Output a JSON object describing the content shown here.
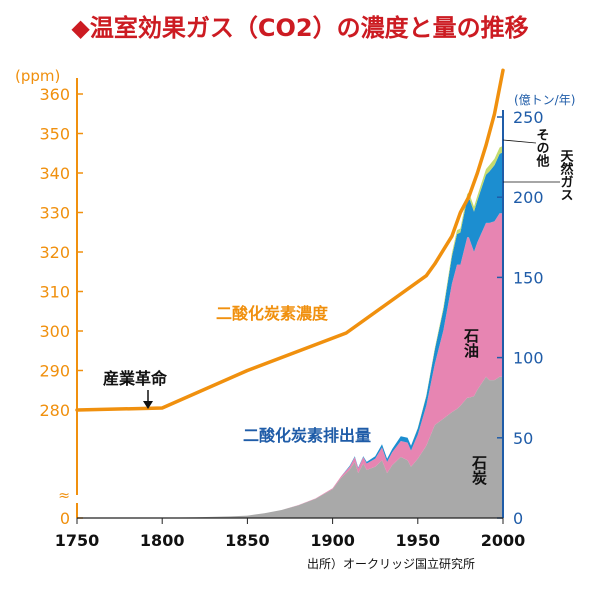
{
  "title": {
    "marker": "◆",
    "text": "温室効果ガス（CO2）の濃度と量の推移"
  },
  "source": "出所）オークリッジ国立研究所",
  "colors": {
    "title": "#cc1b22",
    "concentration": "#f0900e",
    "emissions_axis": "#1f5ca8",
    "coal": "#a9a9a9",
    "oil": "#e785b2",
    "gas": "#1c8ed0",
    "other": "#c4db6e"
  },
  "chart_data": {
    "type": "area",
    "xlim": [
      1750,
      2000
    ],
    "x_ticks": [
      "1750",
      "1800",
      "1850",
      "1900",
      "1950",
      "2000"
    ],
    "left_axis": {
      "unit": "(ppm)",
      "ticks": [
        "0",
        "280",
        "290",
        "300",
        "310",
        "320",
        "330",
        "340",
        "350",
        "360"
      ],
      "break": "≈"
    },
    "right_axis": {
      "unit": "(億トン/年)",
      "ticks": [
        "0",
        "50",
        "100",
        "150",
        "200",
        "250"
      ],
      "range": [
        0,
        250
      ]
    },
    "concentration_series": {
      "name": "二酸化炭素濃度",
      "unit": "ppm",
      "x": [
        1750,
        1800,
        1850,
        1908,
        1955,
        1960,
        1970,
        1975,
        1980,
        1985,
        1990,
        1995,
        2000
      ],
      "y": [
        280,
        280.5,
        290,
        299.5,
        314,
        317,
        324,
        330,
        334,
        340,
        347,
        355,
        366
      ]
    },
    "emission_series": {
      "name": "二酸化炭素排出量",
      "unit": "億トン/年",
      "x": [
        1750,
        1780,
        1800,
        1820,
        1840,
        1850,
        1860,
        1870,
        1880,
        1890,
        1900,
        1905,
        1910,
        1913,
        1915,
        1918,
        1920,
        1925,
        1929,
        1932,
        1935,
        1940,
        1944,
        1946,
        1950,
        1955,
        1960,
        1965,
        1970,
        1973,
        1975,
        1979,
        1980,
        1983,
        1985,
        1990,
        1992,
        1995,
        1998,
        2000
      ],
      "coal": [
        0,
        0,
        0.2,
        0.5,
        1,
        1.5,
        3,
        5,
        8,
        12,
        18,
        25,
        30,
        35,
        28,
        34,
        30,
        32,
        36,
        28,
        33,
        38,
        36,
        32,
        37,
        45,
        58,
        62,
        66,
        68,
        70,
        75,
        75,
        76,
        80,
        88,
        86,
        86,
        88,
        88
      ],
      "oil": [
        0,
        0,
        0,
        0,
        0,
        0,
        0,
        0,
        0.1,
        0.2,
        0.5,
        1,
        2,
        3,
        3,
        4,
        4,
        5,
        8,
        7,
        8,
        10,
        11,
        10,
        15,
        25,
        38,
        55,
        80,
        90,
        88,
        100,
        100,
        90,
        92,
        96,
        98,
        99,
        102,
        102
      ],
      "gas": [
        0,
        0,
        0,
        0,
        0,
        0,
        0,
        0,
        0,
        0,
        0,
        0,
        0.5,
        0.5,
        0.5,
        0.5,
        1,
        1.5,
        2,
        2,
        2,
        3,
        3,
        3,
        4,
        6,
        9,
        13,
        17,
        19,
        20,
        24,
        25,
        25,
        26,
        30,
        32,
        35,
        37,
        38
      ],
      "other": [
        0,
        0,
        0,
        0,
        0,
        0,
        0,
        0,
        0,
        0,
        0,
        0,
        0,
        0,
        0,
        0,
        0,
        0,
        0,
        0,
        0,
        0,
        0,
        0,
        0.3,
        0.5,
        1,
        1.5,
        2,
        2.5,
        2.5,
        3,
        3,
        3,
        3,
        3.5,
        4,
        4,
        4,
        4
      ]
    },
    "labels": {
      "concentration": "二酸化炭素濃度",
      "emission": "二酸化炭素排出量",
      "industrial_revolution": "産業革命",
      "coal": "石炭",
      "oil": "石油",
      "gas": "天然ガス",
      "other": "その他"
    },
    "grid": false,
    "legend": "none"
  }
}
